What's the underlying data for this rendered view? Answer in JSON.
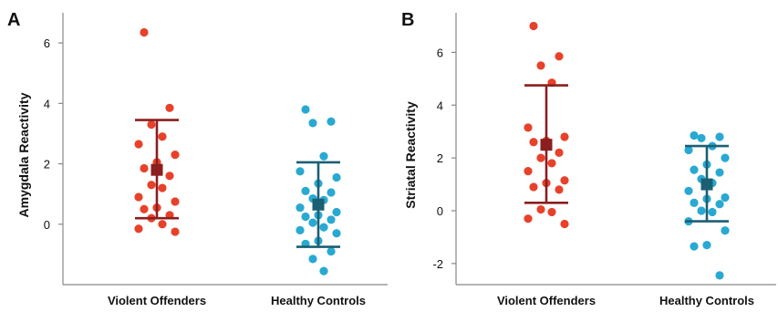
{
  "chart_data": [
    {
      "type": "scatter",
      "panel_label": "A",
      "xlabel": "",
      "ylabel": "Amygdala Reactivity",
      "ylim": [
        -2,
        7
      ],
      "yticks": [
        0,
        2,
        4,
        6
      ],
      "categories": [
        "Violent Offenders",
        "Healthy Controls"
      ],
      "grid": false,
      "series": [
        {
          "category": "Violent Offenders",
          "color": "#e8412a",
          "summary_color": "#8b1e1e",
          "mean": 1.8,
          "upper": 3.45,
          "lower": 0.2,
          "points": [
            6.35,
            3.85,
            3.3,
            2.9,
            2.65,
            2.3,
            2.05,
            1.85,
            1.6,
            1.3,
            1.2,
            0.9,
            0.75,
            0.55,
            0.5,
            0.3,
            0.2,
            0.0,
            -0.15,
            -0.25
          ]
        },
        {
          "category": "Healthy Controls",
          "color": "#29a9d2",
          "summary_color": "#1b5f72",
          "mean": 0.65,
          "upper": 2.05,
          "lower": -0.75,
          "points": [
            3.8,
            3.4,
            3.35,
            2.25,
            1.75,
            1.55,
            1.35,
            1.1,
            1.05,
            0.85,
            0.8,
            0.55,
            0.4,
            0.3,
            0.25,
            0.15,
            0.05,
            -0.1,
            -0.2,
            -0.3,
            -0.55,
            -0.65,
            -0.9,
            -1.15,
            -1.55
          ]
        }
      ]
    },
    {
      "type": "scatter",
      "panel_label": "B",
      "xlabel": "",
      "ylabel": "Striatal Reactivity",
      "ylim": [
        -2.8,
        7.5
      ],
      "yticks": [
        -2,
        0,
        2,
        4,
        6
      ],
      "categories": [
        "Violent Offenders",
        "Healthy Controls"
      ],
      "grid": false,
      "series": [
        {
          "category": "Violent Offenders",
          "color": "#e8412a",
          "summary_color": "#8b1e1e",
          "mean": 2.5,
          "upper": 4.75,
          "lower": 0.3,
          "points": [
            7.0,
            5.85,
            5.5,
            4.85,
            3.15,
            2.8,
            2.65,
            2.6,
            2.2,
            2.0,
            1.8,
            1.5,
            1.15,
            1.05,
            0.9,
            0.8,
            0.05,
            -0.05,
            -0.3,
            -0.5
          ]
        },
        {
          "category": "Healthy Controls",
          "color": "#29a9d2",
          "summary_color": "#1b5f72",
          "mean": 1.0,
          "upper": 2.45,
          "lower": -0.4,
          "points": [
            2.85,
            2.8,
            2.75,
            2.45,
            2.3,
            2.0,
            1.75,
            1.55,
            1.45,
            1.2,
            1.05,
            0.75,
            0.5,
            0.45,
            0.3,
            0.25,
            0.0,
            -0.05,
            -0.4,
            -0.75,
            -1.3,
            -1.35,
            -2.45
          ]
        }
      ]
    }
  ]
}
